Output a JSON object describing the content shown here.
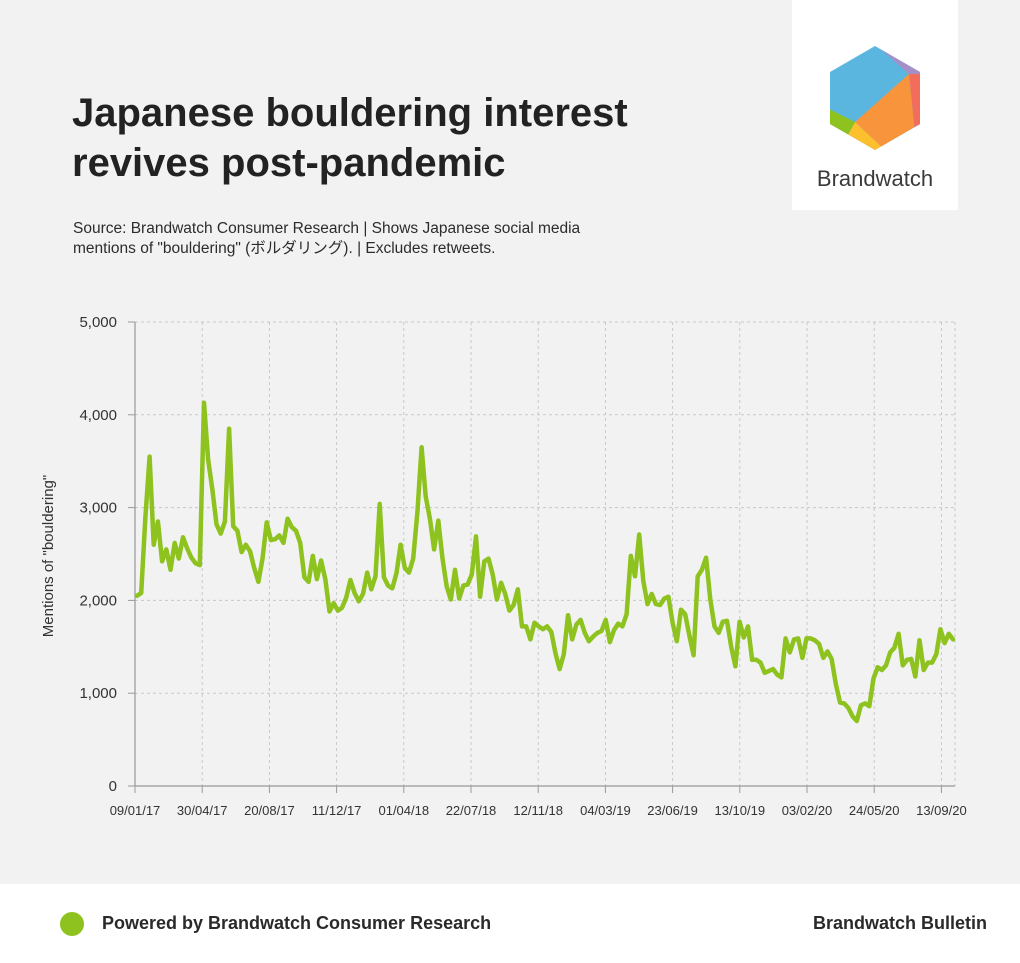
{
  "title": "Japanese bouldering interest revives post-pandemic",
  "subtitle": "Source: Brandwatch Consumer Research | Shows Japanese social media mentions of \"bouldering\" (ボルダリング). | Excludes retweets.",
  "logo": {
    "text": "Brandwatch",
    "icon": "brandwatch-hexagon-logo"
  },
  "footer": {
    "left": "Powered by Brandwatch Consumer Research",
    "right": "Brandwatch Bulletin",
    "dot_color": "#8dc21f"
  },
  "colors": {
    "line": "#8dc21f",
    "background": "#f2f2f2",
    "grid": "#c8c8c8"
  },
  "chart_data": {
    "type": "line",
    "title": "",
    "xlabel": "",
    "ylabel": "Mentions of \"bouldering\"",
    "ylim": [
      0,
      5000
    ],
    "yticks": [
      0,
      1000,
      2000,
      3000,
      4000,
      5000
    ],
    "ytick_labels": [
      "0",
      "1,000",
      "2,000",
      "3,000",
      "4,000",
      "5,000"
    ],
    "xtick_labels": [
      "09/01/17",
      "30/04/17",
      "20/08/17",
      "11/12/17",
      "01/04/18",
      "22/07/18",
      "12/11/18",
      "04/03/19",
      "23/06/19",
      "13/10/19",
      "03/02/20",
      "24/05/20",
      "13/09/20"
    ],
    "grid": true,
    "series": [
      {
        "values": [
          2050,
          2080,
          2900,
          3550,
          2600,
          2850,
          2420,
          2550,
          2330,
          2620,
          2450,
          2680,
          2560,
          2460,
          2400,
          2380,
          4130,
          3520,
          3200,
          2820,
          2720,
          2850,
          3850,
          2800,
          2750,
          2520,
          2600,
          2530,
          2350,
          2200,
          2450,
          2840,
          2650,
          2660,
          2700,
          2620,
          2880,
          2790,
          2750,
          2620,
          2250,
          2200,
          2480,
          2230,
          2430,
          2230,
          1880,
          1970,
          1890,
          1920,
          2030,
          2220,
          2080,
          1990,
          2070,
          2300,
          2120,
          2260,
          3040,
          2250,
          2160,
          2130,
          2290,
          2600,
          2350,
          2300,
          2450,
          2950,
          3650,
          3120,
          2880,
          2550,
          2860,
          2450,
          2150,
          2010,
          2330,
          2020,
          2160,
          2170,
          2280,
          2690,
          2040,
          2420,
          2450,
          2280,
          2010,
          2190,
          2070,
          1890,
          1950,
          2120,
          1720,
          1720,
          1580,
          1760,
          1720,
          1690,
          1720,
          1660,
          1430,
          1260,
          1420,
          1840,
          1580,
          1740,
          1790,
          1650,
          1560,
          1610,
          1650,
          1670,
          1790,
          1550,
          1680,
          1750,
          1720,
          1850,
          2480,
          2260,
          2710,
          2210,
          1960,
          2070,
          1960,
          1950,
          2020,
          2040,
          1760,
          1560,
          1900,
          1850,
          1620,
          1410,
          2260,
          2330,
          2460,
          2010,
          1720,
          1650,
          1770,
          1780,
          1500,
          1290,
          1770,
          1600,
          1720,
          1360,
          1360,
          1330,
          1220,
          1240,
          1260,
          1200,
          1170,
          1590,
          1440,
          1580,
          1590,
          1380,
          1590,
          1590,
          1570,
          1530,
          1380,
          1450,
          1370,
          1100,
          900,
          890,
          840,
          750,
          700,
          870,
          890,
          860,
          1160,
          1280,
          1250,
          1300,
          1440,
          1490,
          1640,
          1300,
          1360,
          1370,
          1180,
          1570,
          1250,
          1330,
          1330,
          1420,
          1690,
          1540,
          1640,
          1580
        ]
      }
    ]
  }
}
